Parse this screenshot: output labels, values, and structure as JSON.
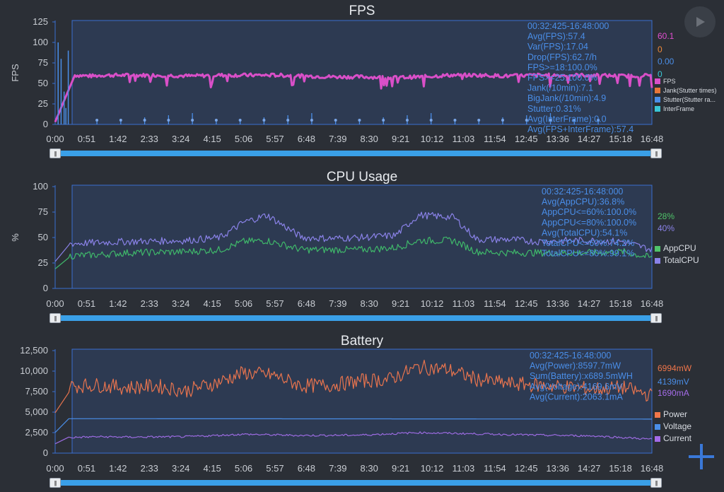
{
  "chart_data": [
    {
      "type": "line",
      "title": "FPS",
      "ylabel": "FPS",
      "ylim": [
        0,
        125
      ],
      "yticks": [
        "0",
        "25",
        "50",
        "75",
        "100",
        "125"
      ],
      "xticks": [
        "0:00",
        "0:51",
        "1:42",
        "2:33",
        "3:24",
        "4:15",
        "5:06",
        "5:57",
        "6:48",
        "7:39",
        "8:30",
        "9:21",
        "10:12",
        "11:03",
        "11:54",
        "12:45",
        "13:36",
        "14:27",
        "15:18",
        "16:48"
      ],
      "stats": [
        "00:32:425-16:48:000",
        "Avg(FPS):57.4",
        "Var(FPS):17.04",
        "Drop(FPS):62.7/h",
        "FPS>=18:100.0%",
        "FPS>=25:100.0%",
        "Jank(/10min):7.1",
        "BigJank(/10min):4.9",
        "Stutter:0.31%",
        "Avg(InterFrame):0.0",
        "Avg(FPS+InterFrame):57.4"
      ],
      "right_values": [
        {
          "text": "60.1",
          "color": "#e14fd0"
        },
        {
          "text": "0",
          "color": "#f08a3a"
        },
        {
          "text": "0.00",
          "color": "#4a8ee8"
        },
        {
          "text": "0",
          "color": "#39c6d6"
        }
      ],
      "legend": [
        {
          "label": "FPS",
          "color": "#d94fc8"
        },
        {
          "label": "Jank(Stutter times)",
          "color": "#e8763a"
        },
        {
          "label": "Stutter(Stutter ra...",
          "color": "#4a8ee8"
        },
        {
          "label": "InterFrame",
          "color": "#39c6d6"
        }
      ],
      "series": [
        {
          "name": "FPS",
          "color": "#d94fc8",
          "x": [
            0,
            0.03,
            0.05,
            0.1,
            0.15,
            0.2,
            0.25,
            0.3,
            0.35,
            0.4,
            0.45,
            0.5,
            0.55,
            0.6,
            0.65,
            0.7,
            0.75,
            0.8,
            0.85,
            0.9,
            0.95,
            1.0
          ],
          "values": [
            60,
            59,
            60,
            60,
            60,
            59,
            60,
            60,
            60,
            59,
            58,
            58,
            57,
            58,
            60,
            60,
            59,
            60,
            60,
            60,
            59,
            60
          ]
        }
      ]
    },
    {
      "type": "line",
      "title": "CPU Usage",
      "ylabel": "%",
      "ylim": [
        0,
        100
      ],
      "yticks": [
        "0",
        "25",
        "50",
        "75",
        "100"
      ],
      "xticks": [
        "0:00",
        "0:51",
        "1:42",
        "2:33",
        "3:24",
        "4:15",
        "5:06",
        "5:57",
        "6:48",
        "7:39",
        "8:30",
        "9:21",
        "10:12",
        "11:03",
        "11:54",
        "12:45",
        "13:36",
        "14:27",
        "15:18",
        "16:48"
      ],
      "stats": [
        "00:32:425-16:48:000",
        "Avg(AppCPU):36.8%",
        "AppCPU<=60%:100.0%",
        "AppCPU<=80%:100.0%",
        "Avg(TotalCPU):54.1%",
        "TotalCPU<=60%:74.2%",
        "TotalCPU<=80%:99.1%"
      ],
      "right_values": [
        {
          "text": "28%",
          "color": "#4fc46a"
        },
        {
          "text": "40%",
          "color": "#8a82e8"
        }
      ],
      "legend": [
        {
          "label": "AppCPU",
          "color": "#4fc46a"
        },
        {
          "label": "TotalCPU",
          "color": "#8a82e8"
        }
      ],
      "series": [
        {
          "name": "AppCPU",
          "color": "#3fb86a",
          "x": [
            0,
            0.05,
            0.1,
            0.2,
            0.26,
            0.3,
            0.34,
            0.4,
            0.45,
            0.5,
            0.56,
            0.6,
            0.66,
            0.7,
            0.76,
            0.8,
            0.86,
            0.9,
            0.95,
            1.0
          ],
          "values": [
            32,
            33,
            35,
            36,
            38,
            46,
            47,
            38,
            38,
            38,
            40,
            47,
            47,
            36,
            35,
            35,
            35,
            35,
            36,
            30
          ]
        },
        {
          "name": "TotalCPU",
          "color": "#8a82e8",
          "x": [
            0,
            0.05,
            0.1,
            0.2,
            0.26,
            0.3,
            0.34,
            0.4,
            0.45,
            0.5,
            0.56,
            0.6,
            0.66,
            0.7,
            0.76,
            0.8,
            0.86,
            0.9,
            0.95,
            1.0
          ],
          "values": [
            44,
            45,
            46,
            47,
            50,
            65,
            72,
            50,
            49,
            50,
            52,
            72,
            70,
            48,
            48,
            46,
            47,
            47,
            46,
            38
          ]
        }
      ]
    },
    {
      "type": "line",
      "title": "Battery",
      "ylim": [
        0,
        12500
      ],
      "yticks": [
        "0",
        "2,500",
        "5,000",
        "7,500",
        "10,000",
        "12,500"
      ],
      "xticks": [
        "0:00",
        "0:51",
        "1:42",
        "2:33",
        "3:24",
        "4:15",
        "5:06",
        "5:57",
        "6:48",
        "7:39",
        "8:30",
        "9:21",
        "10:12",
        "11:03",
        "11:54",
        "12:45",
        "13:36",
        "14:27",
        "15:18",
        "16:48"
      ],
      "stats": [
        "00:32:425-16:48:000",
        "Avg(Power):8597.7mW",
        "Sum(Battery):x689.5mWH",
        "Avg(Voltage):4169.6mV",
        "Avg(Current):2063.1mA"
      ],
      "right_values": [
        {
          "text": "6994mW",
          "color": "#f0764a"
        },
        {
          "text": "4139mV",
          "color": "#4a8ee8"
        },
        {
          "text": "1690mA",
          "color": "#a46be8"
        }
      ],
      "legend": [
        {
          "label": "Power",
          "color": "#f0764a"
        },
        {
          "label": "Voltage",
          "color": "#4a8ee8"
        },
        {
          "label": "Current",
          "color": "#a46be8"
        }
      ],
      "series": [
        {
          "name": "Power",
          "color": "#e8744e",
          "x": [
            0,
            0.05,
            0.1,
            0.15,
            0.2,
            0.25,
            0.3,
            0.35,
            0.4,
            0.45,
            0.5,
            0.55,
            0.6,
            0.65,
            0.7,
            0.75,
            0.8,
            0.85,
            0.9,
            0.95,
            1.0
          ],
          "values": [
            8200,
            8300,
            8000,
            8200,
            7600,
            8500,
            9800,
            9500,
            8200,
            8300,
            8800,
            9000,
            10500,
            10200,
            9000,
            8500,
            8300,
            8100,
            7800,
            8000,
            7000
          ]
        },
        {
          "name": "Voltage",
          "color": "#4a8ee8",
          "x": [
            0,
            0.5,
            1.0
          ],
          "values": [
            4200,
            4180,
            4150
          ]
        },
        {
          "name": "Current",
          "color": "#9b6be0",
          "x": [
            0,
            0.05,
            0.1,
            0.2,
            0.3,
            0.4,
            0.5,
            0.6,
            0.7,
            0.8,
            0.9,
            1.0
          ],
          "values": [
            1900,
            2000,
            1950,
            2000,
            2300,
            2150,
            2200,
            2500,
            2350,
            2200,
            2100,
            1700
          ]
        }
      ]
    }
  ]
}
